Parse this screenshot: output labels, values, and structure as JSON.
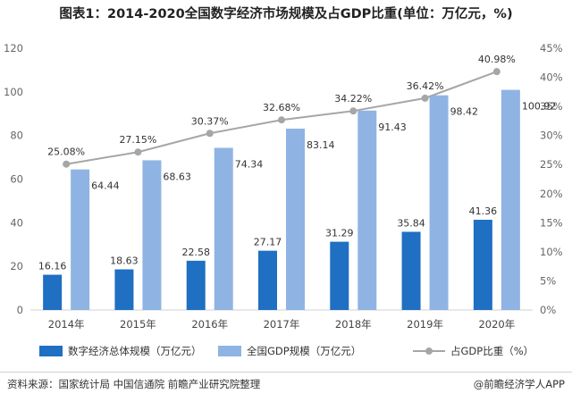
{
  "title": "图表1：2014-2020全国数字经济市场规模及占GDP比重(单位：万亿元，%)",
  "source": "资料来源：国家统计局 中国信通院 前瞻产业研究院整理",
  "brand": "@前瞻经济学人APP",
  "colors": {
    "digital": "#1f6fc2",
    "gdp": "#8fb4e3",
    "ratio": "#a6a6a6"
  },
  "chart_data": {
    "type": "bar",
    "categories": [
      "2014年",
      "2015年",
      "2016年",
      "2017年",
      "2018年",
      "2019年",
      "2020年"
    ],
    "series": [
      {
        "name": "数字经济总体规模（万亿元）",
        "type": "bar",
        "axis": "left",
        "values": [
          16.16,
          18.63,
          22.58,
          27.17,
          31.29,
          35.84,
          41.36
        ],
        "labels": [
          "16.16",
          "18.63",
          "22.58",
          "27.17",
          "31.29",
          "35.84",
          "41.36"
        ]
      },
      {
        "name": "全国GDP规模（万亿元）",
        "type": "bar",
        "axis": "left",
        "values": [
          64.44,
          68.63,
          74.34,
          83.14,
          91.43,
          98.42,
          100.92
        ],
        "labels": [
          "64.44",
          "68.63",
          "74.34",
          "83.14",
          "91.43",
          "98.42",
          "100.92"
        ]
      },
      {
        "name": "占GDP比重（%）",
        "type": "line",
        "axis": "right",
        "values": [
          25.08,
          27.15,
          30.37,
          32.68,
          34.22,
          36.42,
          40.98
        ],
        "labels": [
          "25.08%",
          "27.15%",
          "30.37%",
          "32.68%",
          "34.22%",
          "36.42%",
          "40.98%"
        ]
      }
    ],
    "y_left": {
      "lim": [
        0,
        120
      ],
      "ticks": [
        "0",
        "20",
        "40",
        "60",
        "80",
        "100",
        "120"
      ]
    },
    "y_right": {
      "lim": [
        0,
        45
      ],
      "ticks": [
        "0%",
        "5%",
        "10%",
        "15%",
        "20%",
        "25%",
        "30%",
        "35%",
        "40%",
        "45%"
      ]
    },
    "grid": false,
    "legend": "bottom"
  }
}
